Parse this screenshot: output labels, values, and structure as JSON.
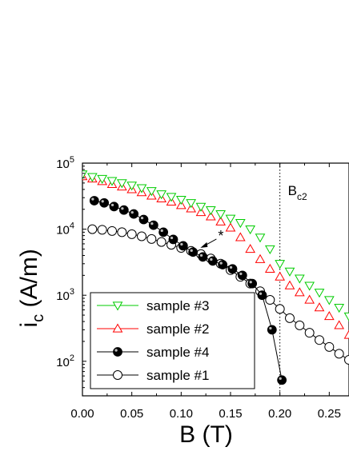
{
  "chart_data": {
    "type": "scatter",
    "xlabel": "B (T)",
    "ylabel_main": "i",
    "ylabel_sub": "c",
    "ylabel_unit": " (A/m)",
    "xlim": [
      0.0,
      0.27
    ],
    "ylim": [
      30,
      100000
    ],
    "y_scale": "log",
    "grid": false,
    "legend_position": "bottom-left",
    "x_ticks": [
      "0.00",
      "0.05",
      "0.10",
      "0.15",
      "0.20",
      "0.25"
    ],
    "y_tick_values": [
      100,
      1000,
      10000,
      100000
    ],
    "y_ticks_base": "10",
    "y_ticks_exp": [
      "2",
      "3",
      "4",
      "5"
    ],
    "annotation_vline": {
      "x": 0.2,
      "label_main": "B",
      "label_sub": "c2"
    },
    "annotation_star": {
      "label": "*",
      "x": 0.113,
      "y": 4800
    },
    "series": [
      {
        "name": "sample #3",
        "marker": "triangle-down",
        "color": "#00cc00",
        "line": false,
        "x": [
          0.0,
          0.01,
          0.02,
          0.03,
          0.04,
          0.05,
          0.06,
          0.07,
          0.08,
          0.09,
          0.1,
          0.11,
          0.12,
          0.13,
          0.14,
          0.15,
          0.16,
          0.17,
          0.18,
          0.19,
          0.2,
          0.21,
          0.22,
          0.23,
          0.24,
          0.25,
          0.26,
          0.27
        ],
        "y": [
          68000,
          62000,
          58000,
          54000,
          50000,
          46000,
          42000,
          38000,
          34000,
          31000,
          28000,
          25000,
          22000,
          19500,
          17000,
          14500,
          12500,
          10000,
          7500,
          5000,
          3000,
          2300,
          1800,
          1400,
          1100,
          850,
          650,
          480
        ]
      },
      {
        "name": "sample #2",
        "marker": "triangle-up",
        "color": "#ff0000",
        "line": false,
        "x": [
          0.0,
          0.01,
          0.02,
          0.03,
          0.04,
          0.05,
          0.06,
          0.07,
          0.08,
          0.09,
          0.1,
          0.11,
          0.12,
          0.13,
          0.14,
          0.15,
          0.16,
          0.17,
          0.18,
          0.19,
          0.2,
          0.21,
          0.22,
          0.23,
          0.24,
          0.25,
          0.26,
          0.27
        ],
        "y": [
          63000,
          58000,
          53000,
          48000,
          44000,
          40000,
          36000,
          32000,
          29000,
          26000,
          23000,
          20500,
          18000,
          15500,
          13000,
          10500,
          7500,
          5000,
          3500,
          2500,
          1900,
          1400,
          1100,
          850,
          650,
          480,
          350,
          250
        ]
      },
      {
        "name": "sample #4",
        "marker": "filled-circle",
        "color": "#000000",
        "line": true,
        "x": [
          0.012,
          0.022,
          0.032,
          0.042,
          0.052,
          0.062,
          0.072,
          0.082,
          0.092,
          0.102,
          0.112,
          0.122,
          0.132,
          0.142,
          0.152,
          0.162,
          0.172,
          0.182,
          0.192,
          0.202
        ],
        "y": [
          27000,
          25000,
          22000,
          19500,
          17000,
          14000,
          11500,
          9000,
          7000,
          5600,
          4500,
          3800,
          3300,
          2900,
          2500,
          2000,
          1500,
          1000,
          300,
          52
        ]
      },
      {
        "name": "sample #1",
        "marker": "open-circle",
        "color": "#000000",
        "line": true,
        "x": [
          0.01,
          0.02,
          0.03,
          0.04,
          0.05,
          0.06,
          0.07,
          0.08,
          0.09,
          0.1,
          0.11,
          0.12,
          0.13,
          0.14,
          0.15,
          0.16,
          0.17,
          0.18,
          0.19,
          0.2,
          0.21,
          0.22,
          0.23,
          0.24,
          0.25,
          0.26,
          0.27
        ],
        "y": [
          10000,
          9800,
          9400,
          9000,
          8400,
          7800,
          7100,
          6400,
          5800,
          5200,
          4700,
          4200,
          3600,
          3000,
          2400,
          1900,
          1500,
          1150,
          850,
          620,
          450,
          350,
          270,
          210,
          165,
          130,
          105
        ]
      }
    ]
  }
}
